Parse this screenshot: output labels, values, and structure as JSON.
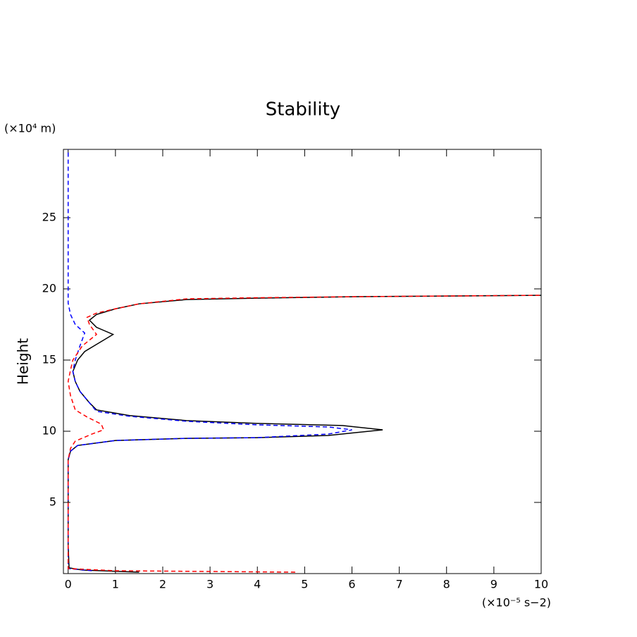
{
  "chart_data": {
    "type": "line",
    "title": "Stability",
    "y_unit": "(×10⁴ m)",
    "y_label": "Height",
    "x_unit": "(×10⁻⁵ s−2)",
    "xlim": [
      -0.1,
      10
    ],
    "ylim": [
      0,
      29.8
    ],
    "xticks": [
      0,
      1,
      2,
      3,
      4,
      5,
      6,
      7,
      8,
      9,
      10
    ],
    "yticks": [
      5,
      10,
      15,
      20,
      25
    ],
    "series": [
      {
        "color": "#000000",
        "dash": false,
        "x": [
          1.5,
          0.3,
          0.02,
          0,
          0,
          0.05,
          0.2,
          1,
          2.5,
          4,
          5.5,
          6.65,
          5.8,
          4,
          2.5,
          1.3,
          0.6,
          0.45,
          0.25,
          0.15,
          0.1,
          0.2,
          0.35,
          0.55,
          0.95,
          0.6,
          0.45,
          0.6,
          1,
          1.5,
          2.5,
          4,
          6,
          8,
          10
        ],
        "y": [
          0.1,
          0.25,
          0.4,
          2,
          8,
          8.6,
          9.0,
          9.35,
          9.5,
          9.55,
          9.7,
          10.1,
          10.4,
          10.55,
          10.75,
          11.1,
          11.5,
          12,
          12.8,
          13.5,
          14.2,
          15,
          15.6,
          16,
          16.8,
          17.3,
          17.8,
          18.2,
          18.6,
          18.95,
          19.25,
          19.35,
          19.45,
          19.5,
          19.55
        ]
      },
      {
        "color": "#0000ff",
        "dash": true,
        "x": [
          0.5,
          0,
          0,
          0.05,
          0.2,
          1,
          2.5,
          4,
          5.5,
          6,
          5.5,
          4,
          2.5,
          1.3,
          0.6,
          0.45,
          0.25,
          0.15,
          0.1,
          0.15,
          0.25,
          0.35,
          0.15,
          0.05,
          0,
          0
        ],
        "y": [
          0.2,
          0.35,
          8,
          8.6,
          9.0,
          9.35,
          9.5,
          9.55,
          9.8,
          10.1,
          10.3,
          10.45,
          10.7,
          11.05,
          11.4,
          12,
          12.8,
          13.5,
          14.2,
          15,
          16,
          16.9,
          17.5,
          18.2,
          19,
          29.8
        ]
      },
      {
        "color": "#ff0000",
        "dash": true,
        "x": [
          4.8,
          1,
          0,
          0,
          0.05,
          0.15,
          0.5,
          0.75,
          0.7,
          0.4,
          0.15,
          0.05,
          0,
          0.05,
          0.1,
          0.3,
          0.6,
          0.45,
          0.4,
          0.6,
          1,
          1.5,
          2.5,
          4,
          6,
          8,
          10
        ],
        "y": [
          0.1,
          0.2,
          0.35,
          8,
          8.8,
          9.3,
          9.8,
          10.1,
          10.5,
          11,
          11.5,
          12.5,
          13.5,
          14.3,
          15,
          16,
          16.8,
          17.5,
          18,
          18.3,
          18.6,
          18.95,
          19.3,
          19.38,
          19.45,
          19.5,
          19.55
        ]
      }
    ]
  }
}
